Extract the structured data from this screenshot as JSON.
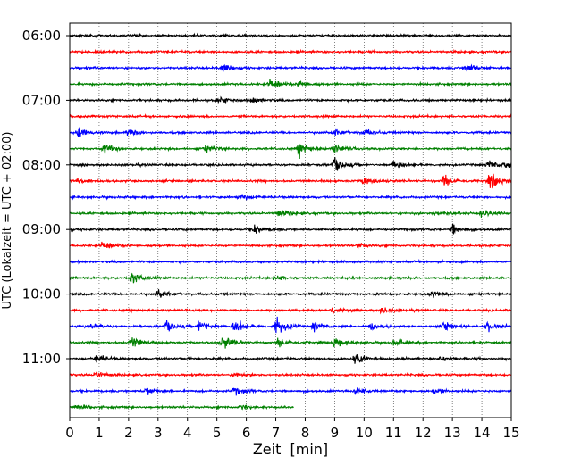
{
  "chart_data": {
    "type": "line",
    "title": "",
    "xlabel": "Zeit  [min]",
    "ylabel": "UTC (Lokalzeit = UTC + 02:00)",
    "xlim": [
      0,
      15
    ],
    "x_ticks": [
      "0",
      "1",
      "2",
      "3",
      "4",
      "5",
      "6",
      "7",
      "8",
      "9",
      "10",
      "11",
      "12",
      "13",
      "14",
      "15"
    ],
    "y_ticks": [
      "06:00",
      "07:00",
      "08:00",
      "09:00",
      "10:00",
      "11:00"
    ],
    "vertical_grid": "dotted",
    "trace_interval_min": 15,
    "trace_start": "06:00",
    "last_trace_end_min": 7.6,
    "colors": [
      "#000000",
      "#ff0000",
      "#0000ff",
      "#008000"
    ],
    "traces": [
      {
        "start": "06:00",
        "bursts": []
      },
      {
        "start": "06:15",
        "bursts": []
      },
      {
        "start": "06:30",
        "bursts": [
          [
            5.2,
            0.8
          ],
          [
            13.5,
            1.0
          ]
        ]
      },
      {
        "start": "06:45",
        "bursts": [
          [
            6.8,
            1.0
          ],
          [
            7.8,
            0.7
          ]
        ]
      },
      {
        "start": "07:00",
        "bursts": [
          [
            5.1,
            0.6
          ],
          [
            6.2,
            0.6
          ]
        ]
      },
      {
        "start": "07:15",
        "bursts": []
      },
      {
        "start": "07:30",
        "bursts": [
          [
            0.3,
            0.9
          ],
          [
            2.0,
            0.6
          ],
          [
            9.0,
            0.6
          ],
          [
            10.0,
            0.7
          ]
        ]
      },
      {
        "start": "07:45",
        "bursts": [
          [
            1.2,
            0.9
          ],
          [
            4.6,
            0.6
          ],
          [
            7.8,
            1.4
          ],
          [
            9.0,
            0.8
          ]
        ]
      },
      {
        "start": "08:00",
        "bursts": [
          [
            9.0,
            1.6
          ],
          [
            11.0,
            0.9
          ],
          [
            14.2,
            1.0
          ],
          [
            14.8,
            0.6
          ]
        ]
      },
      {
        "start": "08:15",
        "bursts": [
          [
            0.3,
            0.6
          ],
          [
            10.0,
            0.9
          ],
          [
            12.7,
            1.2
          ],
          [
            14.3,
            1.6
          ]
        ]
      },
      {
        "start": "08:30",
        "bursts": [
          [
            5.8,
            0.8
          ]
        ]
      },
      {
        "start": "08:45",
        "bursts": [
          [
            7.1,
            0.7
          ],
          [
            12.4,
            0.6
          ],
          [
            14.0,
            0.7
          ]
        ]
      },
      {
        "start": "09:00",
        "bursts": [
          [
            6.3,
            0.9
          ],
          [
            13.0,
            0.9
          ]
        ]
      },
      {
        "start": "09:15",
        "bursts": [
          [
            1.1,
            0.8
          ],
          [
            9.8,
            0.5
          ]
        ]
      },
      {
        "start": "09:30",
        "bursts": []
      },
      {
        "start": "09:45",
        "bursts": [
          [
            2.1,
            1.2
          ],
          [
            7.0,
            0.6
          ]
        ]
      },
      {
        "start": "10:00",
        "bursts": [
          [
            3.0,
            0.8
          ],
          [
            12.3,
            0.7
          ]
        ]
      },
      {
        "start": "10:15",
        "bursts": [
          [
            8.9,
            0.6
          ],
          [
            10.6,
            0.6
          ]
        ]
      },
      {
        "start": "10:30",
        "bursts": [
          [
            0.7,
            0.7
          ],
          [
            3.3,
            1.2
          ],
          [
            4.4,
            1.3
          ],
          [
            5.6,
            1.4
          ],
          [
            7.0,
            2.0
          ],
          [
            8.3,
            1.1
          ],
          [
            10.2,
            0.9
          ],
          [
            12.7,
            1.0
          ],
          [
            14.2,
            0.8
          ]
        ]
      },
      {
        "start": "10:45",
        "bursts": [
          [
            2.1,
            1.2
          ],
          [
            5.2,
            1.4
          ],
          [
            7.1,
            0.9
          ],
          [
            9.0,
            1.0
          ],
          [
            11.0,
            0.8
          ]
        ]
      },
      {
        "start": "11:00",
        "bursts": [
          [
            0.9,
            0.8
          ],
          [
            9.7,
            1.1
          ],
          [
            12.6,
            0.5
          ]
        ]
      },
      {
        "start": "11:15",
        "bursts": [
          [
            0.9,
            0.6
          ],
          [
            5.6,
            0.5
          ]
        ]
      },
      {
        "start": "11:30",
        "bursts": [
          [
            2.6,
            0.8
          ],
          [
            5.6,
            0.8
          ],
          [
            9.7,
            0.7
          ],
          [
            12.4,
            0.5
          ]
        ]
      },
      {
        "start": "11:45",
        "bursts": [
          [
            0.2,
            0.6
          ],
          [
            5.8,
            0.4
          ]
        ]
      }
    ]
  }
}
